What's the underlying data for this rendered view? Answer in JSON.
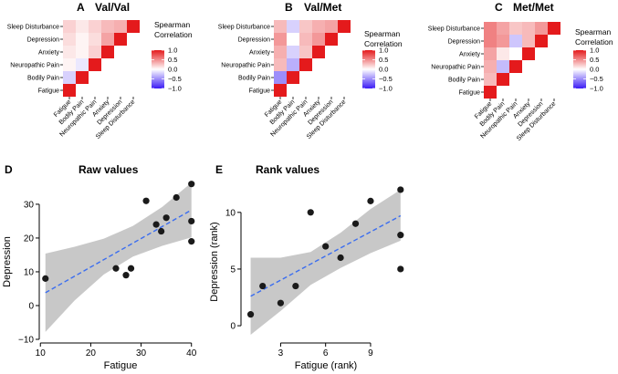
{
  "colors": {
    "high": "#e41a1c",
    "mid": "#ffffff",
    "low": "#3b1bf5",
    "point": "#1a1a1a",
    "trend": "#3a6df0",
    "band": "#c8c8c8",
    "axis": "#000000"
  },
  "legend": {
    "title_line1": "Spearman",
    "title_line2": "Correlation",
    "ticks": [
      {
        "value": 1.0,
        "label": "1.0"
      },
      {
        "value": 0.5,
        "label": "0.5"
      },
      {
        "value": 0.0,
        "label": "0.0"
      },
      {
        "value": -0.5,
        "label": "−0.5"
      },
      {
        "value": -1.0,
        "label": "−1.0"
      }
    ]
  },
  "chart_data": [
    {
      "type": "heatmap",
      "panel": "A",
      "title": "Val/Val",
      "variables": [
        "Fatigue",
        "Bodily Pain",
        "Neuropathic Pain",
        "Anxiety",
        "Depression",
        "Sleep Disturbance"
      ],
      "matrix": [
        [
          1.0,
          -0.2,
          0.05,
          0.1,
          0.15,
          0.2
        ],
        [
          -0.2,
          1.0,
          -0.1,
          0.05,
          0.05,
          0.1
        ],
        [
          0.05,
          -0.1,
          1.0,
          0.2,
          0.15,
          0.2
        ],
        [
          0.1,
          0.05,
          0.2,
          1.0,
          0.4,
          0.3
        ],
        [
          0.15,
          0.05,
          0.15,
          0.4,
          1.0,
          0.35
        ],
        [
          0.2,
          0.1,
          0.2,
          0.3,
          0.35,
          1.0
        ]
      ]
    },
    {
      "type": "heatmap",
      "panel": "B",
      "title": "Val/Met",
      "variables": [
        "Fatigue",
        "Bodily Pain",
        "Neuropathic Pain",
        "Anxiety",
        "Depression",
        "Sleep Disturbance"
      ],
      "matrix": [
        [
          1.0,
          -0.5,
          0.3,
          0.35,
          0.45,
          0.3
        ],
        [
          -0.5,
          1.0,
          -0.35,
          -0.2,
          0.0,
          -0.2
        ],
        [
          0.3,
          -0.35,
          1.0,
          0.25,
          0.3,
          0.25
        ],
        [
          0.35,
          -0.2,
          0.25,
          1.0,
          0.45,
          0.35
        ],
        [
          0.45,
          0.0,
          0.3,
          0.45,
          1.0,
          0.4
        ],
        [
          0.3,
          -0.2,
          0.25,
          0.35,
          0.4,
          1.0
        ]
      ]
    },
    {
      "type": "heatmap",
      "panel": "C",
      "title": "Met/Met",
      "variables": [
        "Fatigue",
        "Bodily Pain",
        "Neuropathic Pain",
        "Anxiety",
        "Depression",
        "Sleep Disturbance"
      ],
      "matrix": [
        [
          1.0,
          0.3,
          0.35,
          0.4,
          0.55,
          0.55
        ],
        [
          0.3,
          1.0,
          -0.3,
          0.1,
          0.45,
          0.4
        ],
        [
          0.35,
          -0.3,
          1.0,
          0.0,
          -0.25,
          0.25
        ],
        [
          0.4,
          0.1,
          0.0,
          1.0,
          0.3,
          0.3
        ],
        [
          0.55,
          0.45,
          -0.25,
          0.3,
          1.0,
          0.45
        ],
        [
          0.55,
          0.4,
          0.25,
          0.3,
          0.45,
          1.0
        ]
      ]
    },
    {
      "type": "scatter",
      "panel": "D",
      "title": "Raw values",
      "xlabel": "Fatigue",
      "ylabel": "Depression",
      "xlim": [
        10.5,
        41.5
      ],
      "ylim": [
        -10,
        37
      ],
      "xticks": [
        10,
        20,
        30,
        40
      ],
      "yticks": [
        -10,
        0,
        10,
        20,
        30
      ],
      "points": [
        [
          11,
          8
        ],
        [
          25,
          11
        ],
        [
          27,
          9
        ],
        [
          28,
          11
        ],
        [
          31,
          31
        ],
        [
          33,
          24
        ],
        [
          34,
          22
        ],
        [
          35,
          26
        ],
        [
          37,
          32
        ],
        [
          40,
          36
        ],
        [
          40,
          25
        ],
        [
          40,
          19
        ]
      ],
      "fit": {
        "x": [
          11,
          40
        ],
        "y": [
          3.8,
          28.3
        ]
      },
      "band": {
        "x": [
          11,
          16.8,
          22.6,
          28.4,
          34.2,
          40
        ],
        "lower": [
          -7.8,
          1.5,
          9.2,
          14.5,
          17.7,
          20.2
        ],
        "upper": [
          15.4,
          17.4,
          19.8,
          23.6,
          29.2,
          36.4
        ]
      }
    },
    {
      "type": "scatter",
      "panel": "E",
      "title": "Rank values",
      "xlabel": "Fatigue (rank)",
      "ylabel": "Depression (rank)",
      "xlim": [
        0.6,
        11.5
      ],
      "ylim": [
        -1.2,
        12.8
      ],
      "xticks": [
        3,
        6,
        9
      ],
      "yticks": [
        0,
        5,
        10
      ],
      "points": [
        [
          1,
          1
        ],
        [
          1.8,
          3.5
        ],
        [
          3,
          2
        ],
        [
          4,
          3.5
        ],
        [
          5,
          10
        ],
        [
          6,
          7
        ],
        [
          7,
          6
        ],
        [
          8,
          9
        ],
        [
          9,
          11
        ],
        [
          11,
          12
        ],
        [
          11,
          8
        ],
        [
          11,
          5
        ]
      ],
      "fit": {
        "x": [
          1,
          11
        ],
        "y": [
          2.6,
          9.7
        ]
      },
      "band": {
        "x": [
          1,
          3,
          5,
          7,
          9,
          11
        ],
        "lower": [
          -0.8,
          1.3,
          3.6,
          5.1,
          6.4,
          7.5
        ],
        "upper": [
          6.0,
          6.0,
          6.5,
          8.2,
          10.3,
          12.0
        ]
      }
    }
  ]
}
